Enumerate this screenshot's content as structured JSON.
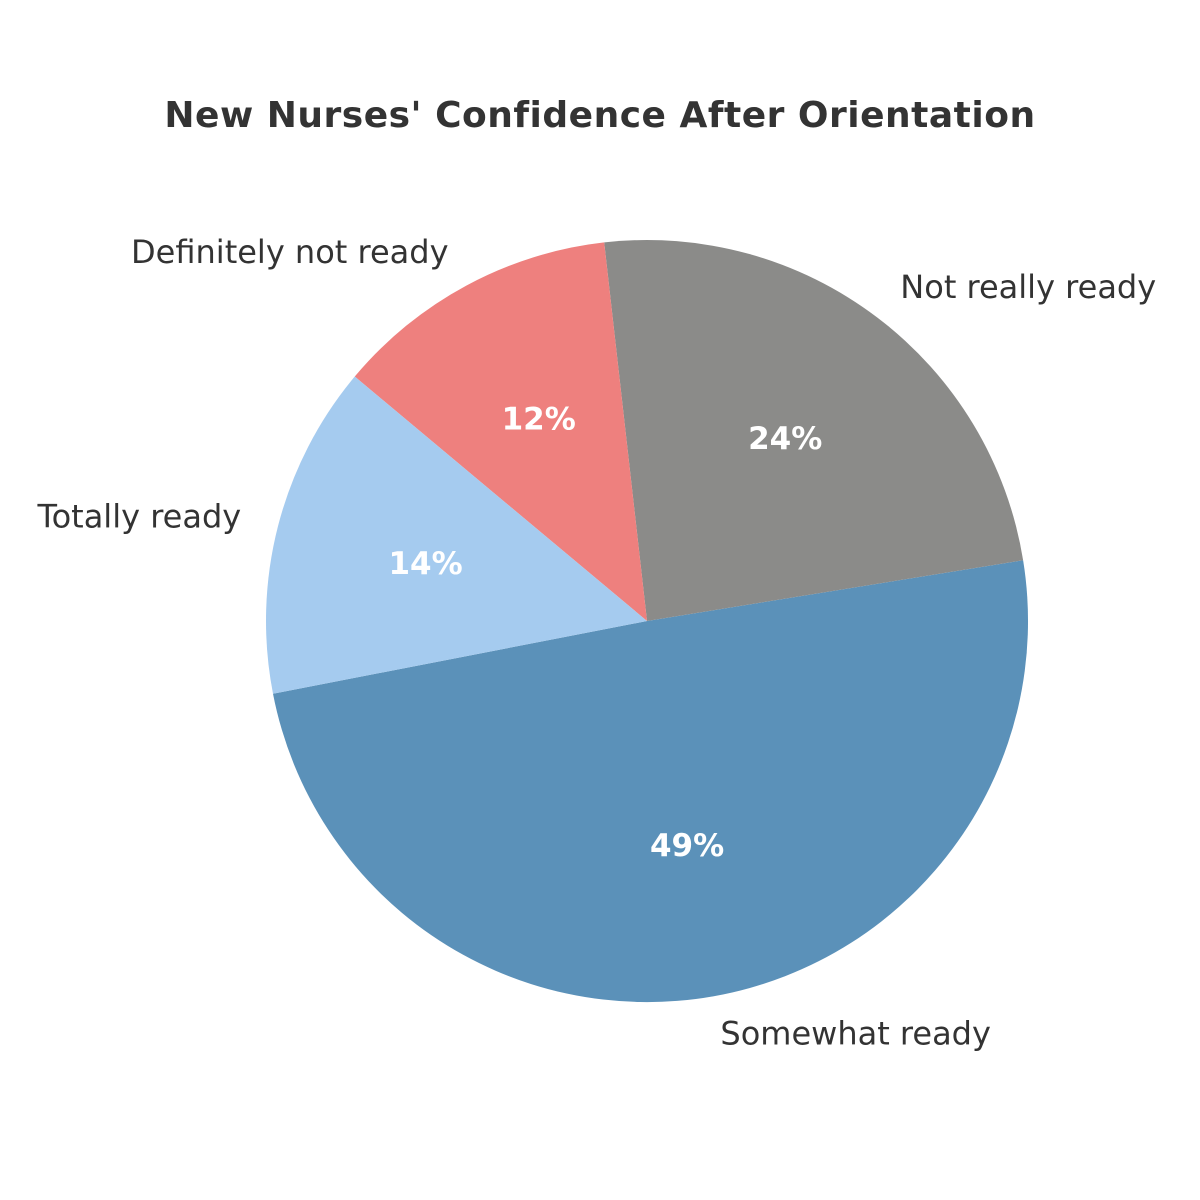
{
  "page": {
    "background_color": "#ffffff"
  },
  "chart_data": {
    "type": "pie",
    "title": "New Nurses' Confidence After Orientation",
    "title_color": "#333333",
    "label_color": "#333333",
    "pct_label_color": "#ffffff",
    "legend": "none",
    "start_angle_deg": 191,
    "direction": "counterclockwise",
    "pct_distance": 0.6,
    "label_distance": 1.1,
    "slices": [
      {
        "label": "Somewhat ready",
        "value": 49,
        "pct_label": "49%",
        "color": "#5b91b9"
      },
      {
        "label": "Not really ready",
        "value": 24,
        "pct_label": "24%",
        "color": "#8b8b89"
      },
      {
        "label": "Definitely not ready",
        "value": 12,
        "pct_label": "12%",
        "color": "#ee807e"
      },
      {
        "label": "Totally ready",
        "value": 14,
        "pct_label": "14%",
        "color": "#a5cbef"
      }
    ]
  }
}
